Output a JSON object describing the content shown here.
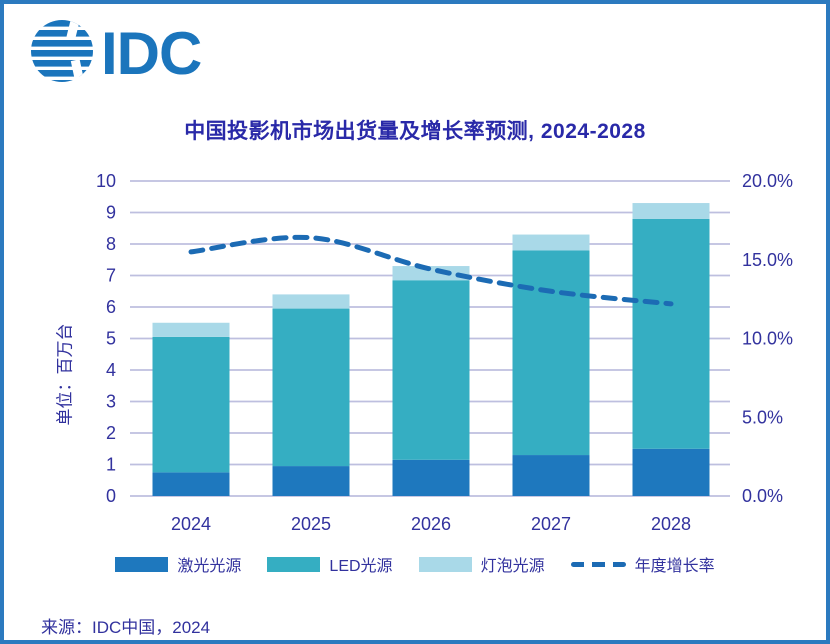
{
  "logo": {
    "text": "IDC",
    "color": "#1B75BC"
  },
  "title": "中国投影机市场出货量及增长率预测, 2024-2028",
  "source": "来源：IDC中国，2024",
  "colors": {
    "frame_border": "#2B7ABF",
    "grid": "#BEBFDF",
    "text": "#32329E",
    "title_text": "#2929A8",
    "laser": "#1E78BE",
    "led": "#35AEC2",
    "bulb": "#A9D9E8",
    "growth_line": "#1C6BB4"
  },
  "chart_data": {
    "type": "bar",
    "title": "中国投影机市场出货量及增长率预测, 2024-2028",
    "categories": [
      "2024",
      "2025",
      "2026",
      "2027",
      "2028"
    ],
    "series": [
      {
        "name": "激光光源",
        "type": "bar-stack",
        "color": "#1E78BE",
        "values": [
          0.75,
          0.95,
          1.15,
          1.3,
          1.5
        ]
      },
      {
        "name": "LED光源",
        "type": "bar-stack",
        "color": "#35AEC2",
        "values": [
          4.3,
          5.0,
          5.7,
          6.5,
          7.3
        ]
      },
      {
        "name": "灯泡光源",
        "type": "bar-stack",
        "color": "#A9D9E8",
        "values": [
          0.45,
          0.45,
          0.45,
          0.5,
          0.5
        ]
      },
      {
        "name": "年度增长率",
        "type": "line",
        "axis": "right",
        "style": "dashed",
        "color": "#1C6BB4",
        "values_percent": [
          15.5,
          16.4,
          14.4,
          13.0,
          12.2
        ]
      }
    ],
    "totals": [
      5.5,
      6.4,
      7.3,
      8.3,
      9.3
    ],
    "left_axis": {
      "label": "单位：百万台",
      "min": 0,
      "max": 10,
      "tick_step": 1
    },
    "right_axis": {
      "min": 0,
      "max": 20,
      "tick_step": 5,
      "format": "percent_1dp"
    },
    "grid": true,
    "legend_position": "bottom"
  }
}
